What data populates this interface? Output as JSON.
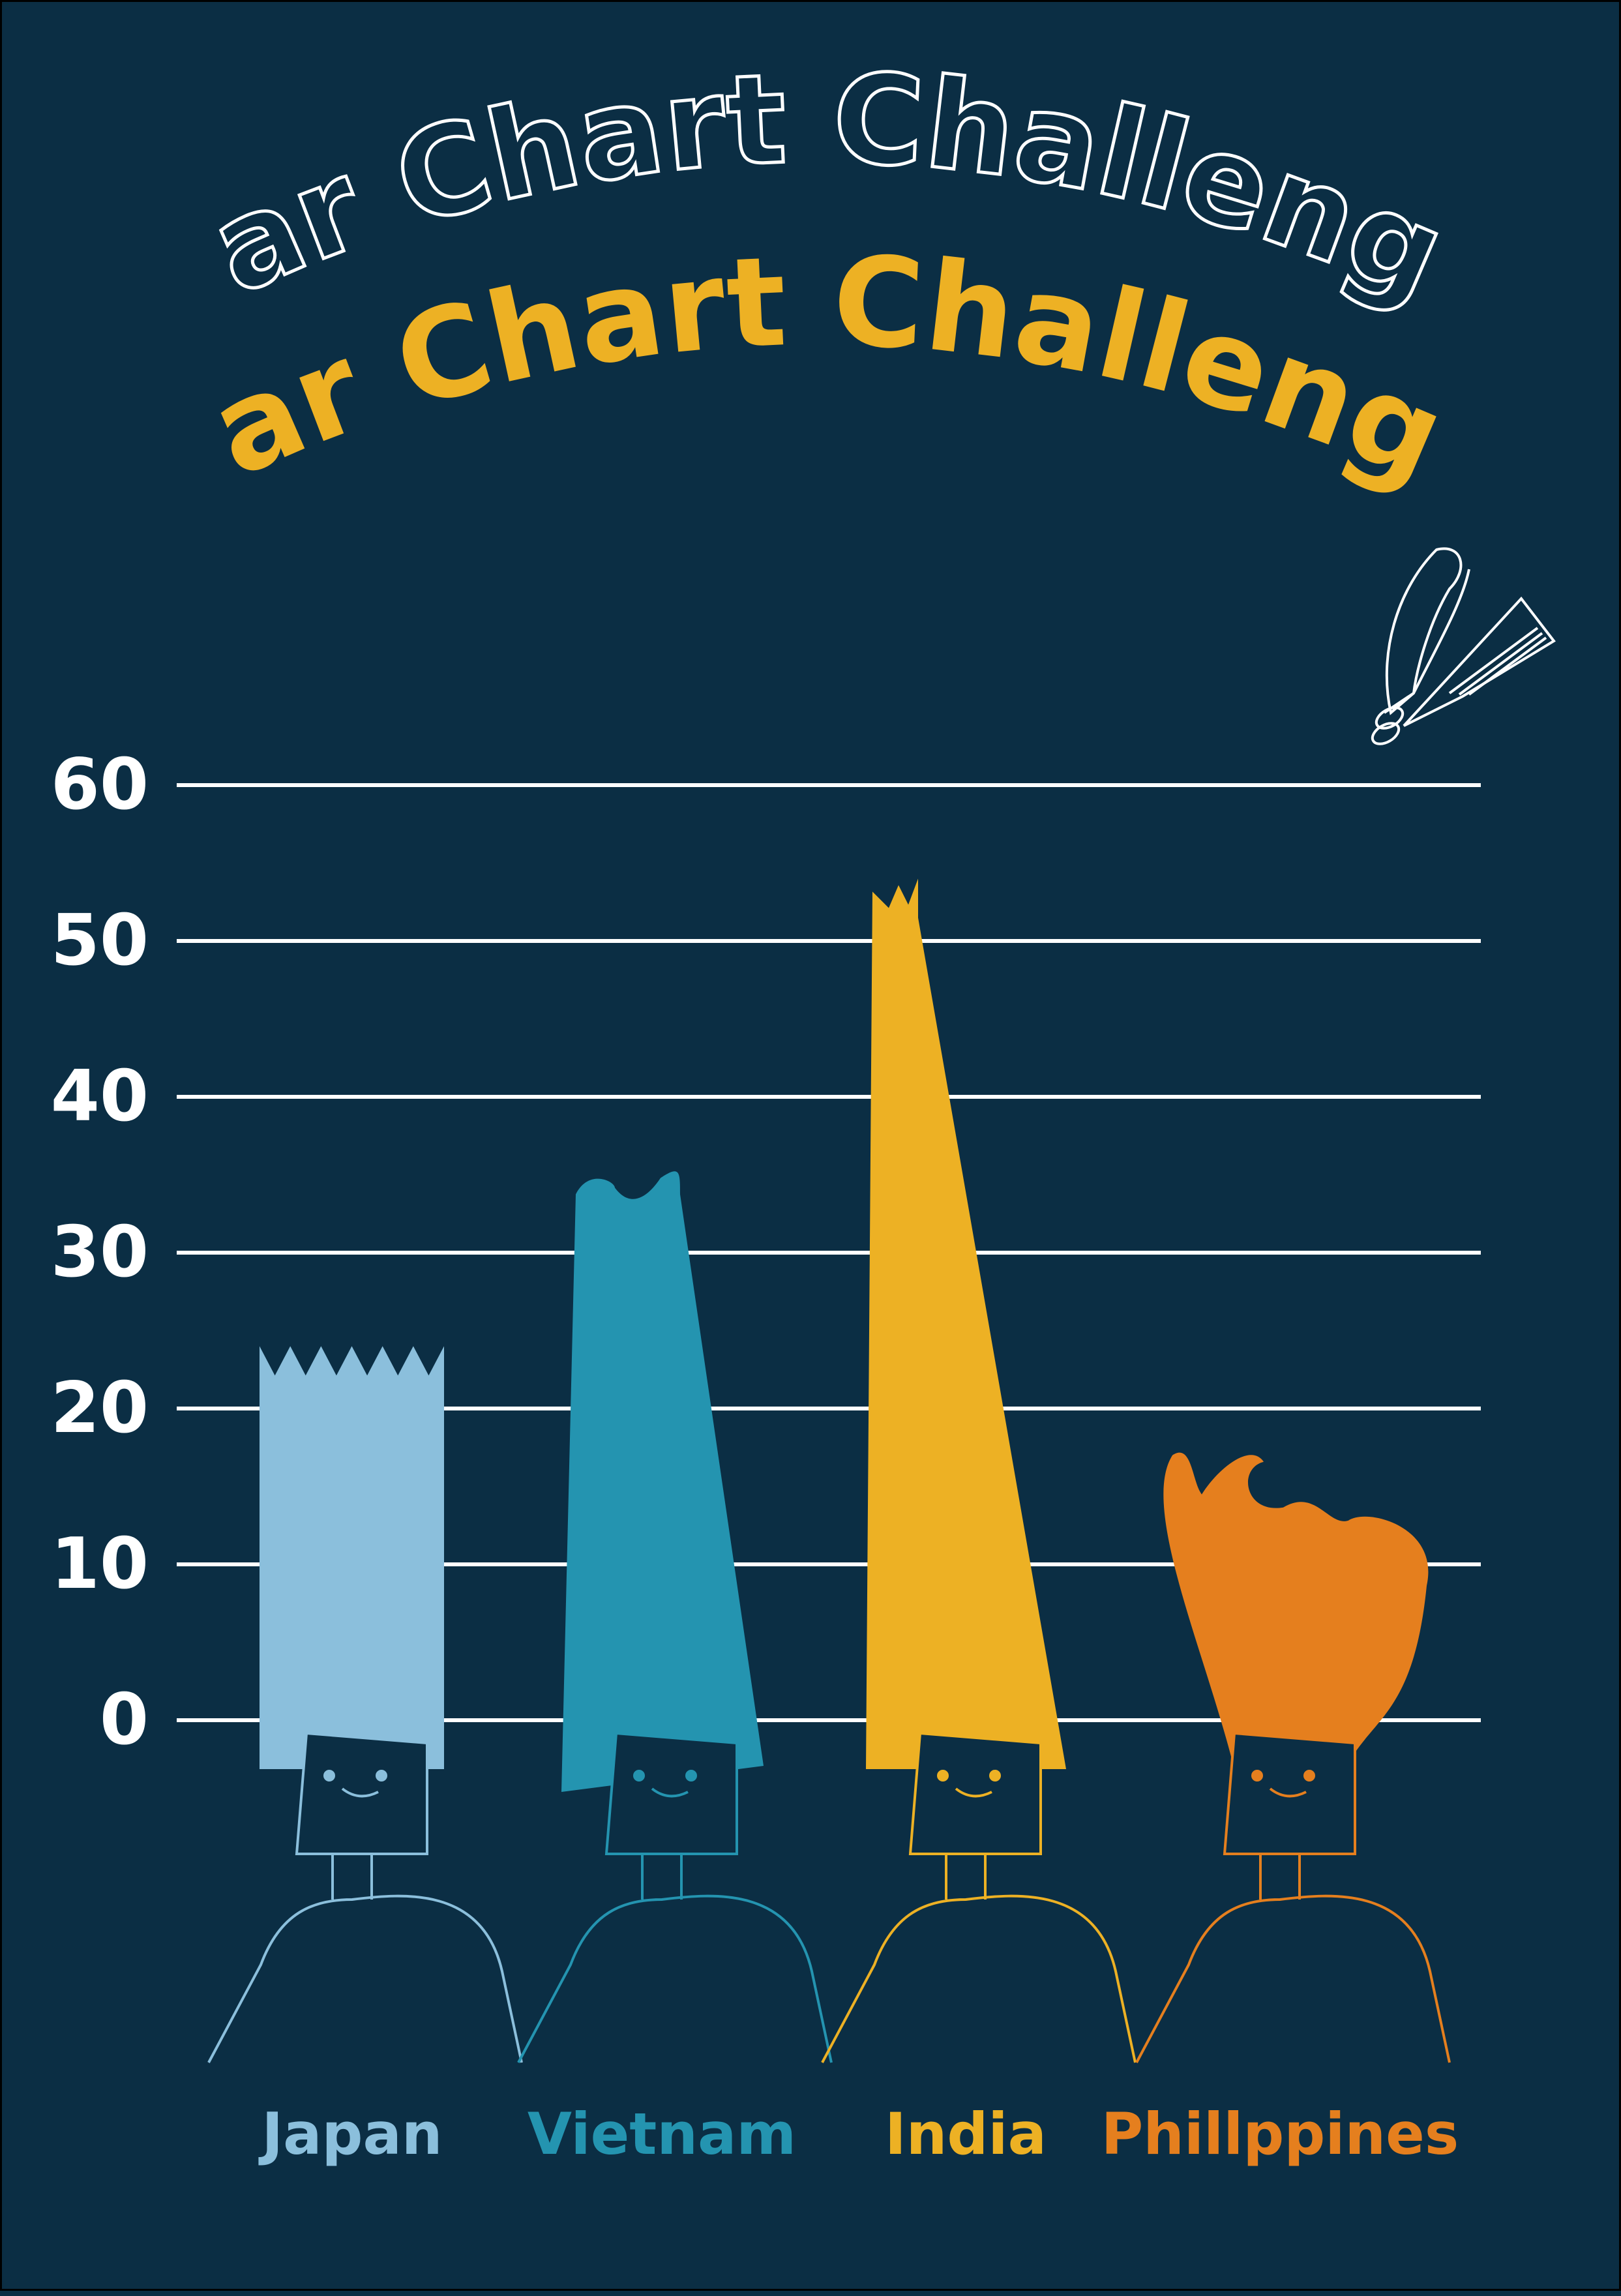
{
  "title": "Bar Chart Challenge",
  "subtitle": "Bar Chart Challenge",
  "colors": {
    "background": "#0b2e44",
    "title": "#edb124",
    "grid": "#ffffff"
  },
  "icons": [
    "scissors-icon",
    "comb-icon"
  ],
  "chart_data": {
    "type": "bar",
    "title": "Bar Chart Challenge",
    "xlabel": "",
    "ylabel": "",
    "ylim": [
      0,
      60
    ],
    "yticks": [
      0,
      10,
      20,
      30,
      40,
      50,
      60
    ],
    "grid": true,
    "categories": [
      "Japan",
      "Vietnam",
      "India",
      "Phillppines"
    ],
    "values": [
      24,
      35,
      54,
      17
    ],
    "colors": [
      "#8bbfdc",
      "#2494b0",
      "#edb124",
      "#e57f1e"
    ]
  }
}
